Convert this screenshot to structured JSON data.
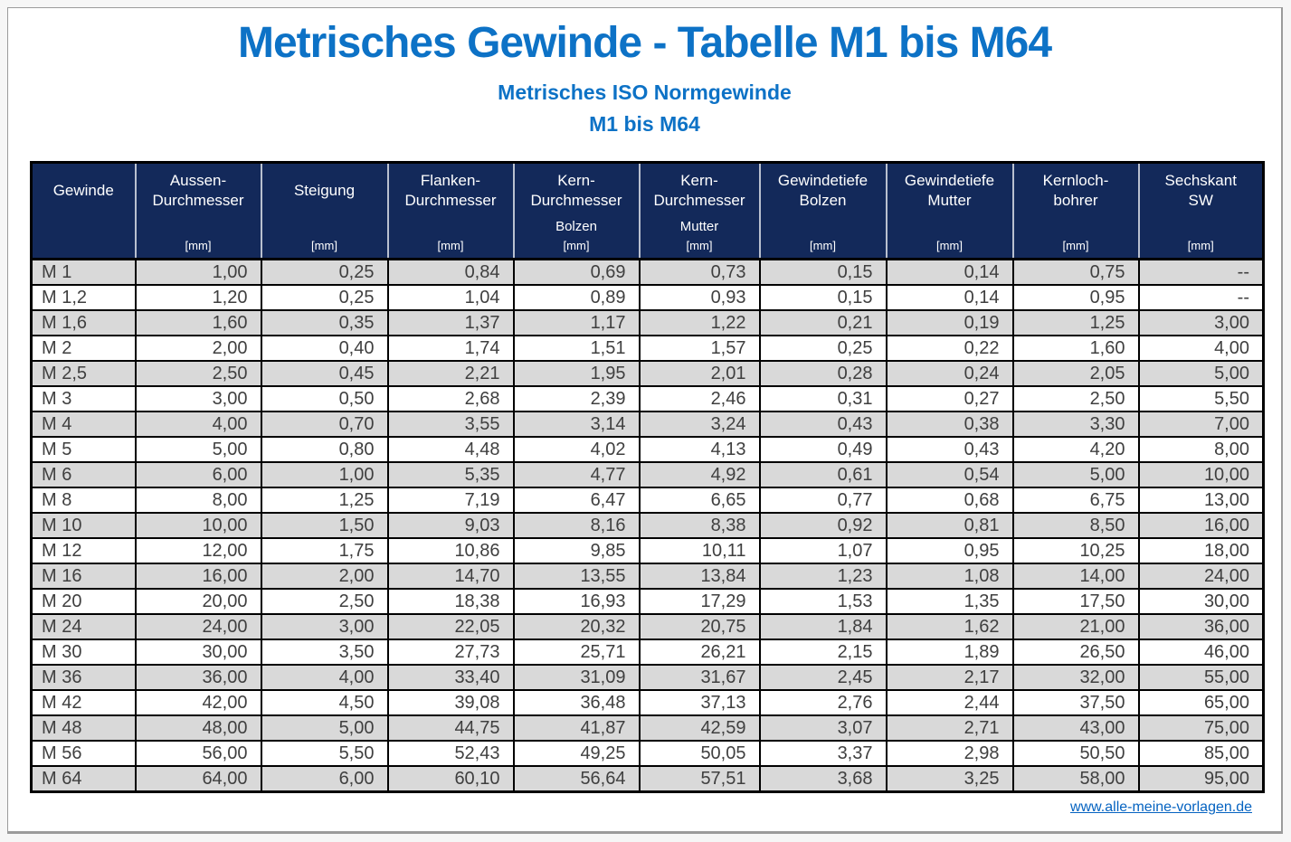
{
  "page": {
    "title": "Metrisches Gewinde - Tabelle M1 bis M64",
    "subtitle1": "Metrisches ISO Normgewinde",
    "subtitle2": "M1 bis M64"
  },
  "table": {
    "columns": [
      {
        "lines": [
          "Gewinde"
        ],
        "sub": "",
        "unit": ""
      },
      {
        "lines": [
          "Aussen-",
          "Durchmesser"
        ],
        "sub": "",
        "unit": "[mm]"
      },
      {
        "lines": [
          "Steigung"
        ],
        "sub": "",
        "unit": "[mm]"
      },
      {
        "lines": [
          "Flanken-",
          "Durchmesser"
        ],
        "sub": "",
        "unit": "[mm]"
      },
      {
        "lines": [
          "Kern-",
          "Durchmesser"
        ],
        "sub": "Bolzen",
        "unit": "[mm]"
      },
      {
        "lines": [
          "Kern-",
          "Durchmesser"
        ],
        "sub": "Mutter",
        "unit": "[mm]"
      },
      {
        "lines": [
          "Gewindetiefe",
          "Bolzen"
        ],
        "sub": "",
        "unit": "[mm]"
      },
      {
        "lines": [
          "Gewindetiefe",
          "Mutter"
        ],
        "sub": "",
        "unit": "[mm]"
      },
      {
        "lines": [
          "Kernloch-",
          "bohrer"
        ],
        "sub": "",
        "unit": "[mm]"
      },
      {
        "lines": [
          "Sechskant",
          "SW"
        ],
        "sub": "",
        "unit": "[mm]"
      }
    ],
    "rows": [
      [
        "M 1",
        "1,00",
        "0,25",
        "0,84",
        "0,69",
        "0,73",
        "0,15",
        "0,14",
        "0,75",
        "--"
      ],
      [
        "M 1,2",
        "1,20",
        "0,25",
        "1,04",
        "0,89",
        "0,93",
        "0,15",
        "0,14",
        "0,95",
        "--"
      ],
      [
        "M 1,6",
        "1,60",
        "0,35",
        "1,37",
        "1,17",
        "1,22",
        "0,21",
        "0,19",
        "1,25",
        "3,00"
      ],
      [
        "M 2",
        "2,00",
        "0,40",
        "1,74",
        "1,51",
        "1,57",
        "0,25",
        "0,22",
        "1,60",
        "4,00"
      ],
      [
        "M 2,5",
        "2,50",
        "0,45",
        "2,21",
        "1,95",
        "2,01",
        "0,28",
        "0,24",
        "2,05",
        "5,00"
      ],
      [
        "M 3",
        "3,00",
        "0,50",
        "2,68",
        "2,39",
        "2,46",
        "0,31",
        "0,27",
        "2,50",
        "5,50"
      ],
      [
        "M 4",
        "4,00",
        "0,70",
        "3,55",
        "3,14",
        "3,24",
        "0,43",
        "0,38",
        "3,30",
        "7,00"
      ],
      [
        "M 5",
        "5,00",
        "0,80",
        "4,48",
        "4,02",
        "4,13",
        "0,49",
        "0,43",
        "4,20",
        "8,00"
      ],
      [
        "M 6",
        "6,00",
        "1,00",
        "5,35",
        "4,77",
        "4,92",
        "0,61",
        "0,54",
        "5,00",
        "10,00"
      ],
      [
        "M 8",
        "8,00",
        "1,25",
        "7,19",
        "6,47",
        "6,65",
        "0,77",
        "0,68",
        "6,75",
        "13,00"
      ],
      [
        "M 10",
        "10,00",
        "1,50",
        "9,03",
        "8,16",
        "8,38",
        "0,92",
        "0,81",
        "8,50",
        "16,00"
      ],
      [
        "M 12",
        "12,00",
        "1,75",
        "10,86",
        "9,85",
        "10,11",
        "1,07",
        "0,95",
        "10,25",
        "18,00"
      ],
      [
        "M 16",
        "16,00",
        "2,00",
        "14,70",
        "13,55",
        "13,84",
        "1,23",
        "1,08",
        "14,00",
        "24,00"
      ],
      [
        "M 20",
        "20,00",
        "2,50",
        "18,38",
        "16,93",
        "17,29",
        "1,53",
        "1,35",
        "17,50",
        "30,00"
      ],
      [
        "M 24",
        "24,00",
        "3,00",
        "22,05",
        "20,32",
        "20,75",
        "1,84",
        "1,62",
        "21,00",
        "36,00"
      ],
      [
        "M 30",
        "30,00",
        "3,50",
        "27,73",
        "25,71",
        "26,21",
        "2,15",
        "1,89",
        "26,50",
        "46,00"
      ],
      [
        "M 36",
        "36,00",
        "4,00",
        "33,40",
        "31,09",
        "31,67",
        "2,45",
        "2,17",
        "32,00",
        "55,00"
      ],
      [
        "M 42",
        "42,00",
        "4,50",
        "39,08",
        "36,48",
        "37,13",
        "2,76",
        "2,44",
        "37,50",
        "65,00"
      ],
      [
        "M 48",
        "48,00",
        "5,00",
        "44,75",
        "41,87",
        "42,59",
        "3,07",
        "2,71",
        "43,00",
        "75,00"
      ],
      [
        "M 56",
        "56,00",
        "5,50",
        "52,43",
        "49,25",
        "50,05",
        "3,37",
        "2,98",
        "50,50",
        "85,00"
      ],
      [
        "M 64",
        "64,00",
        "6,00",
        "60,10",
        "56,64",
        "57,51",
        "3,68",
        "3,25",
        "58,00",
        "95,00"
      ]
    ]
  },
  "footer": {
    "link_text": "www.alle-meine-vorlagen.de"
  },
  "colors": {
    "title_blue": "#0d72c6",
    "header_navy": "#13295a",
    "row_alt_gray": "#d9d9d9",
    "cell_text": "#3f3f3f",
    "link_blue": "#0563c1"
  }
}
